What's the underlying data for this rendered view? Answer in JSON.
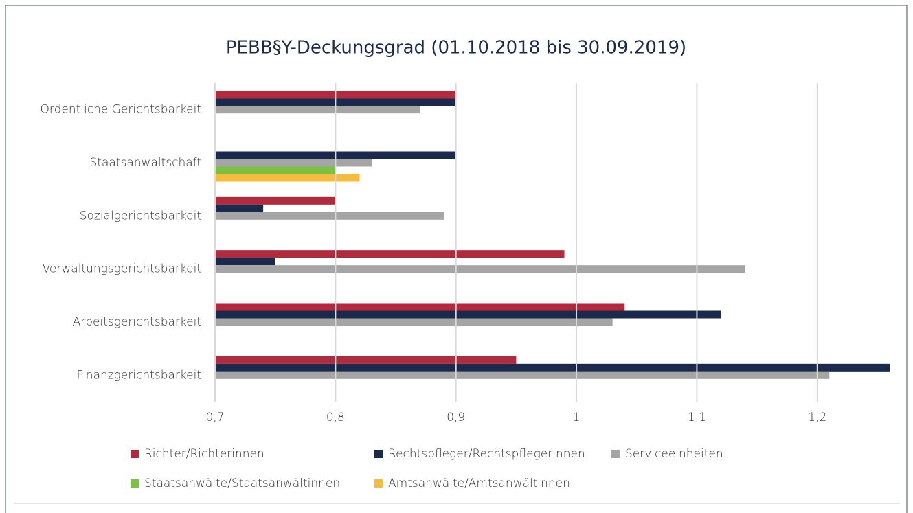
{
  "chart_data": {
    "type": "bar",
    "orientation": "horizontal",
    "title": "PEBB§Y-Deckungsgrad (01.10.2018 bis 30.09.2019)",
    "categories": [
      "Ordentliche Gerichtsbarkeit",
      "Staatsanwaltschaft",
      "Sozialgerichtsbarkeit",
      "Verwaltungsgerichtsbarkeit",
      "Arbeitsgerichtsbarkeit",
      "Finanzgerichtsbarkeit"
    ],
    "series": [
      {
        "name": "Richter/Richterinnen",
        "color": "#b22a3e",
        "values": [
          0.9,
          null,
          0.8,
          0.99,
          1.04,
          0.95
        ]
      },
      {
        "name": "Rechtspfleger/Rechtspflegerinnen",
        "color": "#1b2a4c",
        "values": [
          0.9,
          0.9,
          0.74,
          0.75,
          1.12,
          1.26
        ]
      },
      {
        "name": "Serviceeinheiten",
        "color": "#a5a5a5",
        "values": [
          0.87,
          0.83,
          0.89,
          1.14,
          1.03,
          1.21
        ]
      },
      {
        "name": "Staatsanwälte/Staatsanwältinnen",
        "color": "#7cc142",
        "values": [
          null,
          0.8,
          null,
          null,
          null,
          null
        ]
      },
      {
        "name": "Amtsanwälte/Amtsanwältinnen",
        "color": "#f5bd3f",
        "values": [
          null,
          0.82,
          null,
          null,
          null,
          null
        ]
      }
    ],
    "xlim": [
      0.7,
      1.26
    ],
    "xticks": [
      {
        "value": 0.7,
        "label": "0,7"
      },
      {
        "value": 0.8,
        "label": "0,8"
      },
      {
        "value": 0.9,
        "label": "0,9"
      },
      1,
      {
        "value": 1.1,
        "label": "1,1"
      },
      {
        "value": 1.2,
        "label": "1,2"
      }
    ],
    "grid": true,
    "legend": "bottom"
  }
}
